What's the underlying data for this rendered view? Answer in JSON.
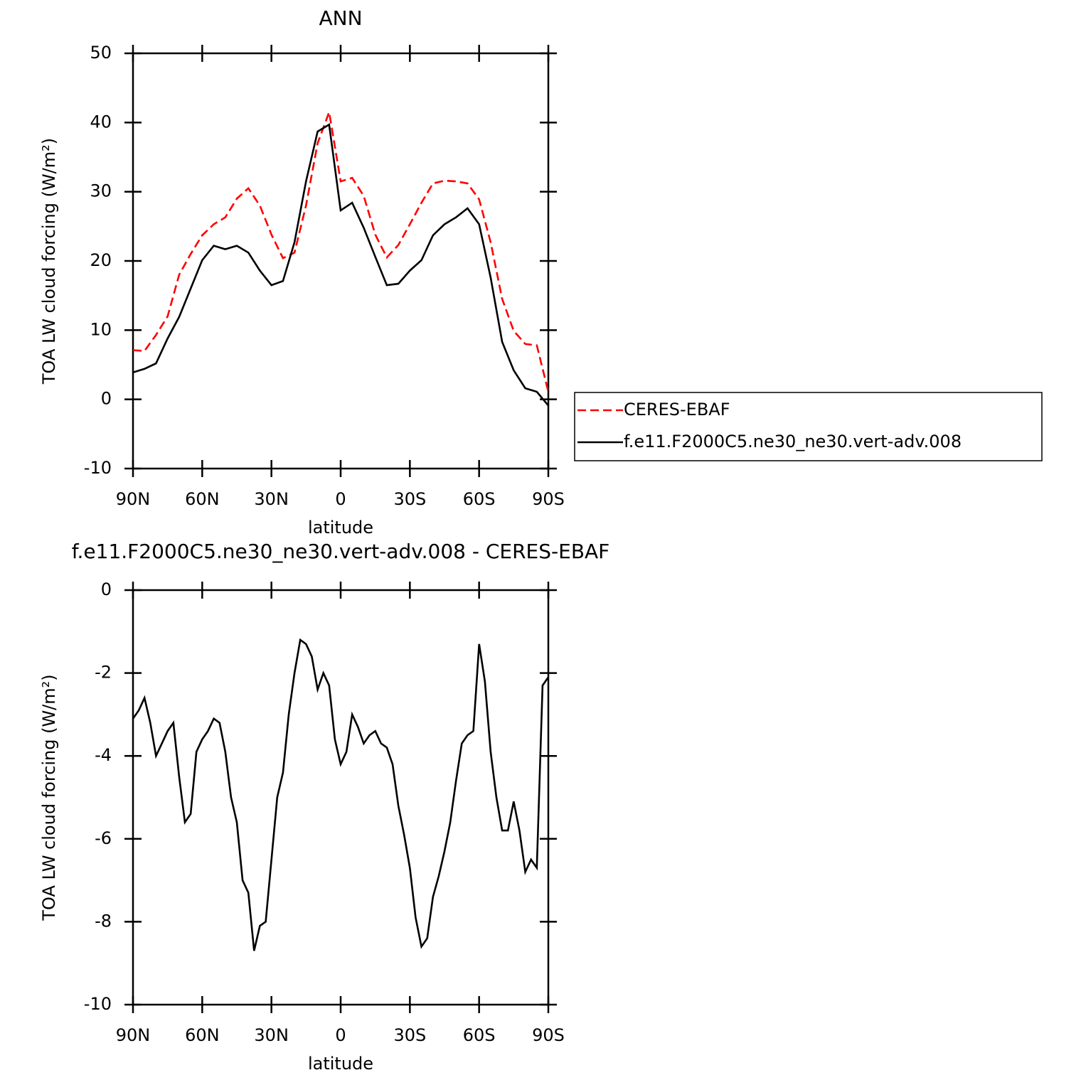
{
  "chart_data": [
    {
      "type": "line",
      "title": "ANN",
      "x_label": "latitude",
      "y_label": "TOA LW cloud forcing (W/m²)",
      "x": [
        90,
        85,
        80,
        75,
        70,
        65,
        60,
        55,
        50,
        45,
        40,
        35,
        30,
        25,
        20,
        15,
        10,
        5,
        0,
        -5,
        -10,
        -15,
        -20,
        -25,
        -30,
        -35,
        -40,
        -45,
        -50,
        -55,
        -60,
        -65,
        -70,
        -75,
        -80,
        -85,
        -90
      ],
      "series": [
        {
          "name": "CERES-EBAF",
          "color": "#ff0000",
          "linestyle": "dashed",
          "values": [
            7.1,
            7.0,
            9.3,
            12,
            18,
            21,
            23.7,
            25.3,
            26.3,
            29,
            30.5,
            28,
            23.8,
            20.4,
            21.2,
            28,
            37,
            41.5,
            31.5,
            32,
            29.4,
            23.8,
            20.5,
            22.3,
            25.3,
            28.4,
            31.2,
            31.6,
            31.5,
            31.2,
            28.9,
            22.7,
            14.5,
            9.9,
            8.0,
            7.8,
            1.1
          ]
        },
        {
          "name": "f.e11.F2000C5.ne30_ne30.vert-adv.008",
          "color": "#000000",
          "linestyle": "solid",
          "values": [
            3.9,
            4.4,
            5.2,
            8.8,
            11.9,
            16,
            20.1,
            22.2,
            21.7,
            22.2,
            21.2,
            18.6,
            16.5,
            17.1,
            22.7,
            31.5,
            38.7,
            39.7,
            27.3,
            28.4,
            24.8,
            20.6,
            16.5,
            16.7,
            18.6,
            20.1,
            23.7,
            25.3,
            26.3,
            27.6,
            25.3,
            17.6,
            8.3,
            4.2,
            1.6,
            1.1,
            -0.9
          ]
        }
      ],
      "xlim": [
        90,
        -90
      ],
      "xticks": [
        {
          "value": 90,
          "label": "90N"
        },
        {
          "value": 60,
          "label": "60N"
        },
        {
          "value": 30,
          "label": "30N"
        },
        0,
        {
          "value": -30,
          "label": "30S"
        },
        {
          "value": -60,
          "label": "60S"
        },
        {
          "value": -90,
          "label": "90S"
        }
      ],
      "ylim": [
        -10,
        50
      ],
      "yticks": [
        -10,
        0,
        10,
        20,
        30,
        40,
        50
      ],
      "legend": "right"
    },
    {
      "type": "line",
      "title": "f.e11.F2000C5.ne30_ne30.vert-adv.008 - CERES-EBAF",
      "x_label": "latitude",
      "y_label": "TOA LW cloud forcing (W/m²)",
      "x": [
        90,
        87.5,
        85,
        82.5,
        80,
        77.5,
        75,
        72.5,
        70,
        67.5,
        65,
        62.5,
        60,
        57.5,
        55,
        52.5,
        50,
        47.5,
        45,
        42.5,
        40,
        37.5,
        35,
        32.5,
        30,
        27.5,
        25,
        22.5,
        20,
        17.5,
        15,
        12.5,
        10,
        7.5,
        5,
        2.5,
        0,
        -2.5,
        -5,
        -7.5,
        -10,
        -12.5,
        -15,
        -17.5,
        -20,
        -22.5,
        -25,
        -27.5,
        -30,
        -32.5,
        -35,
        -37.5,
        -40,
        -42.5,
        -45,
        -47.5,
        -50,
        -52.5,
        -55,
        -57.5,
        -60,
        -62.5,
        -65,
        -67.5,
        -70,
        -72.5,
        -75,
        -77.5,
        -80,
        -82.5,
        -85,
        -87.5,
        -90
      ],
      "color": "#000000",
      "values": [
        -3.1,
        -2.9,
        -2.6,
        -3.2,
        -4.0,
        -3.7,
        -3.4,
        -3.2,
        -4.5,
        -5.6,
        -5.4,
        -3.9,
        -3.6,
        -3.4,
        -3.1,
        -3.2,
        -3.9,
        -5.0,
        -5.6,
        -7.0,
        -7.3,
        -8.7,
        -8.1,
        -8.0,
        -6.5,
        -5.0,
        -4.4,
        -3.0,
        -2.0,
        -1.2,
        -1.3,
        -1.6,
        -2.4,
        -2.0,
        -2.3,
        -3.6,
        -4.2,
        -3.9,
        -3.0,
        -3.3,
        -3.7,
        -3.5,
        -3.4,
        -3.7,
        -3.8,
        -4.2,
        -5.2,
        -5.9,
        -6.7,
        -7.9,
        -8.6,
        -8.4,
        -7.4,
        -6.9,
        -6.3,
        -5.6,
        -4.6,
        -3.7,
        -3.5,
        -3.4,
        -1.3,
        -2.2,
        -3.9,
        -5.0,
        -5.8,
        -5.8,
        -5.1,
        -5.8,
        -6.8,
        -6.5,
        -6.7,
        -2.3,
        -2.1
      ],
      "xlim": [
        90,
        -90
      ],
      "xticks": [
        {
          "value": 90,
          "label": "90N"
        },
        {
          "value": 60,
          "label": "60N"
        },
        {
          "value": 30,
          "label": "30N"
        },
        0,
        {
          "value": -30,
          "label": "30S"
        },
        {
          "value": -60,
          "label": "60S"
        },
        {
          "value": -90,
          "label": "90S"
        }
      ],
      "ylim": [
        -10,
        0
      ],
      "yticks": [
        -10,
        -8,
        -6,
        -4,
        -2,
        0
      ]
    }
  ]
}
